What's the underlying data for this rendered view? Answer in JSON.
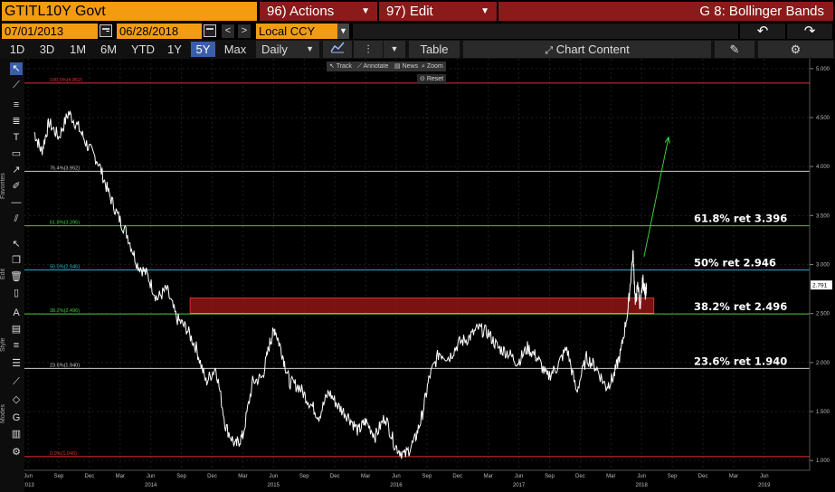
{
  "header": {
    "ticker": "GTITL10Y Govt",
    "actions_label": "96) Actions",
    "edit_label": "97) Edit",
    "title": "G 8: Bollinger Bands"
  },
  "daterow": {
    "start_date": "07/01/2013",
    "separator": "-",
    "end_date": "06/28/2018",
    "currency": "Local CCY"
  },
  "toolbar": {
    "periods": [
      "1D",
      "3D",
      "1M",
      "6M",
      "YTD",
      "1Y",
      "5Y",
      "Max"
    ],
    "active_period": "5Y",
    "frequency": "Daily",
    "table_label": "Table",
    "chart_content_label": "Chart Content"
  },
  "chart_tools": {
    "track": "Track",
    "annotate": "Annotate",
    "news": "News",
    "zoom": "Zoom",
    "reset": "Reset"
  },
  "side_labels": {
    "favorites": "Favorites",
    "edit": "Edit",
    "style": "Style",
    "modes": "Modes"
  },
  "colors": {
    "ticker_bg": "#f39c12",
    "menu_red": "#8b1a1a",
    "active_blue": "#3a5fa8",
    "price_line": "#ffffff",
    "fib_red": "#e03030",
    "fib_white": "#cccccc",
    "fib_green": "#3ad13a",
    "fib_cyan": "#29b6d6",
    "zone_fill": "#b01818",
    "arrow": "#3ad13a"
  },
  "chart_data": {
    "type": "line",
    "title": "",
    "ylim": [
      0.9,
      5.1
    ],
    "yticks": [
      "5.000",
      "4.500",
      "4.000",
      "3.500",
      "3.000",
      "2.500",
      "2.000",
      "1.500",
      "1.000"
    ],
    "last_value": "2.791",
    "x_months": [
      "Jun",
      "Sep",
      "Dec",
      "Mar",
      "Jun",
      "Sep",
      "Dec",
      "Mar",
      "Jun",
      "Sep",
      "Dec",
      "Mar",
      "Jun",
      "Sep",
      "Dec",
      "Mar",
      "Jun",
      "Sep",
      "Dec",
      "Mar",
      "Jun",
      "Sep",
      "Dec",
      "Mar",
      "Jun"
    ],
    "x_years": [
      "2013",
      "2014",
      "2015",
      "2016",
      "2017",
      "2018",
      "2019"
    ],
    "fib_levels": [
      {
        "label": "100.0%(4.852)",
        "value": 4.852,
        "color": "#e03030"
      },
      {
        "label": "76.4%(3.952)",
        "value": 3.952,
        "color": "#cccccc"
      },
      {
        "label": "61.8%(3.396)",
        "value": 3.396,
        "color": "#3ad13a"
      },
      {
        "label": "50.0%(2.946)",
        "value": 2.946,
        "color": "#29b6d6"
      },
      {
        "label": "38.2%(2.496)",
        "value": 2.496,
        "color": "#3ad13a"
      },
      {
        "label": "23.6%(1.940)",
        "value": 1.94,
        "color": "#cccccc"
      },
      {
        "label": "0.0%(1.040)",
        "value": 1.04,
        "color": "#e03030"
      }
    ],
    "annotations": [
      {
        "text": "61.8% ret 3.396",
        "value": 3.396
      },
      {
        "text": "50% ret 2.946",
        "value": 2.946
      },
      {
        "text": "38.2% ret 2.496",
        "value": 2.496
      },
      {
        "text": "23.6% ret 1.940",
        "value": 1.94
      }
    ],
    "zone": {
      "from": 2.5,
      "to": 2.66
    },
    "series": [
      {
        "x": [
          2013.5,
          2013.56,
          2013.62,
          2013.7,
          2013.78,
          2013.86,
          2013.94,
          2014.02,
          2014.1,
          2014.18,
          2014.26,
          2014.34,
          2014.42,
          2014.5,
          2014.58,
          2014.66,
          2014.74,
          2014.82,
          2014.9,
          2014.98,
          2015.06,
          2015.14,
          2015.2,
          2015.28,
          2015.36,
          2015.42,
          2015.46,
          2015.52,
          2015.58,
          2015.66,
          2015.74,
          2015.82,
          2015.9,
          2015.98,
          2016.06,
          2016.14,
          2016.2,
          2016.28,
          2016.36,
          2016.44,
          2016.52,
          2016.6,
          2016.66,
          2016.72,
          2016.8,
          2016.88,
          2016.96,
          2017.04,
          2017.12,
          2017.2,
          2017.28,
          2017.36,
          2017.44,
          2017.52,
          2017.6,
          2017.68,
          2017.76,
          2017.84,
          2017.92,
          2018.0,
          2018.08,
          2018.16,
          2018.22,
          2018.28,
          2018.34,
          2018.38,
          2018.4,
          2018.42,
          2018.44,
          2018.46,
          2018.48,
          2018.49
        ],
        "values": [
          4.35,
          4.15,
          4.45,
          4.3,
          4.55,
          4.4,
          4.2,
          4.05,
          3.75,
          3.5,
          3.3,
          3.0,
          2.9,
          2.65,
          2.75,
          2.45,
          2.35,
          2.15,
          1.8,
          1.95,
          1.35,
          1.15,
          1.25,
          1.8,
          1.85,
          2.2,
          2.35,
          2.1,
          1.8,
          1.75,
          1.6,
          1.45,
          1.7,
          1.55,
          1.45,
          1.3,
          1.4,
          1.25,
          1.45,
          1.15,
          1.05,
          1.2,
          1.45,
          1.85,
          2.1,
          2.05,
          2.2,
          2.25,
          2.35,
          2.3,
          2.15,
          2.1,
          2.0,
          2.15,
          2.05,
          1.85,
          1.95,
          2.15,
          1.7,
          2.05,
          1.95,
          1.75,
          1.85,
          2.1,
          2.55,
          3.12,
          2.6,
          2.8,
          2.55,
          2.85,
          2.7,
          2.79
        ]
      }
    ],
    "arrow": {
      "from": [
        2018.47,
        3.08
      ],
      "to": [
        2018.67,
        4.3
      ]
    }
  }
}
